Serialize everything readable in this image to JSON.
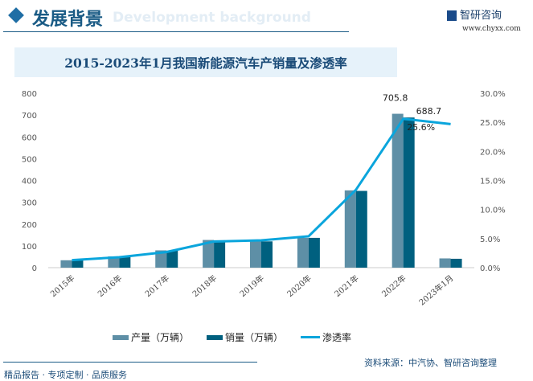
{
  "header": {
    "title": "发展背景",
    "subtitle_watermark": "Development background",
    "logo_text": "智研咨询",
    "url": "www.chyxx.com"
  },
  "chart_data": {
    "type": "bar+line",
    "title": "2015-2023年1月我国新能源汽车产销量及渗透率",
    "categories": [
      "2015年",
      "2016年",
      "2017年",
      "2018年",
      "2019年",
      "2020年",
      "2021年",
      "2022年",
      "2023年1月"
    ],
    "series": [
      {
        "name": "产量（万辆）",
        "type": "bar",
        "axis": "left",
        "color": "#5e8fa6",
        "values": [
          34.0,
          51.7,
          79.4,
          127.0,
          124.2,
          136.6,
          354.5,
          705.8,
          42.5
        ]
      },
      {
        "name": "销量（万辆）",
        "type": "bar",
        "axis": "left",
        "color": "#00607f",
        "values": [
          33.1,
          50.7,
          77.7,
          125.6,
          120.6,
          136.7,
          352.1,
          688.7,
          40.8
        ]
      },
      {
        "name": "渗透率",
        "type": "line",
        "axis": "right",
        "color": "#0aa5dc",
        "values": [
          1.3,
          1.8,
          2.7,
          4.5,
          4.7,
          5.4,
          13.4,
          25.6,
          24.7
        ]
      }
    ],
    "data_labels": [
      {
        "series": 0,
        "index": 7,
        "text": "705.8"
      },
      {
        "series": 1,
        "index": 7,
        "text": "688.7"
      },
      {
        "series": 2,
        "index": 7,
        "text": "25.6%"
      }
    ],
    "ylim": [
      0,
      800
    ],
    "yticks": [
      0,
      100,
      200,
      300,
      400,
      500,
      600,
      700,
      800
    ],
    "y2lim": [
      0,
      30
    ],
    "y2ticks": [
      "0.0%",
      "5.0%",
      "10.0%",
      "15.0%",
      "20.0%",
      "25.0%",
      "30.0%"
    ],
    "legend": "bottom",
    "grid": false
  },
  "footer": {
    "source": "资料来源：中汽协、智研咨询整理",
    "slogan": "精品报告 · 专项定制 · 品质服务"
  }
}
